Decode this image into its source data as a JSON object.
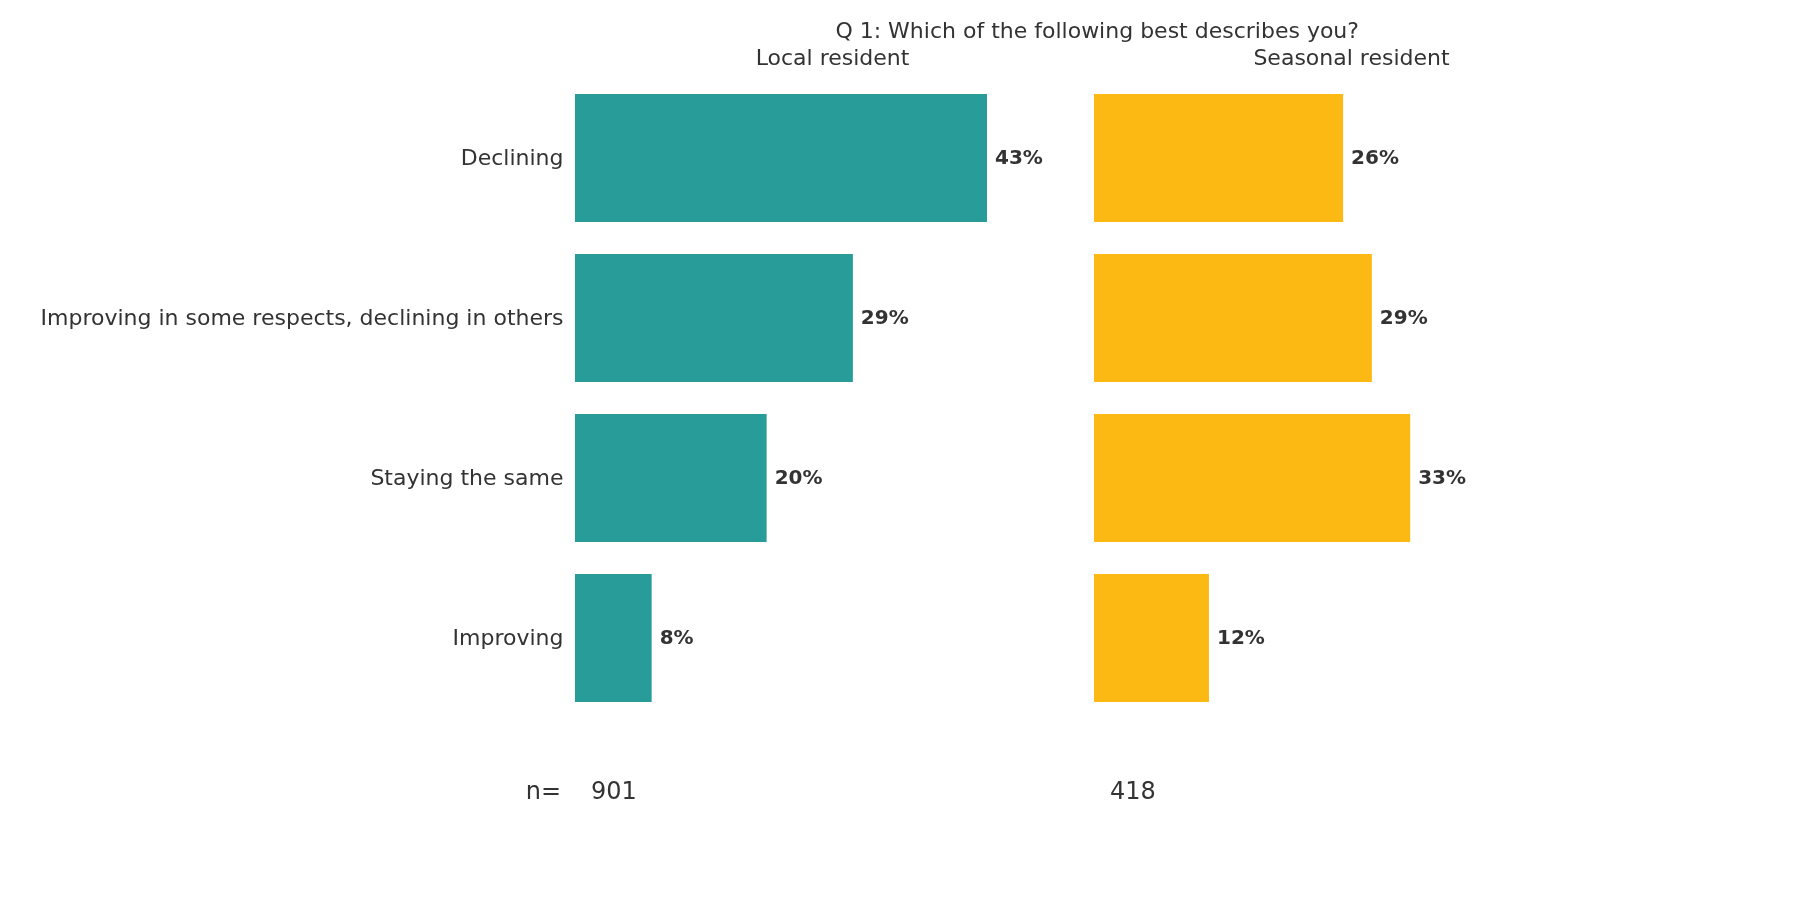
{
  "chart_data": [
    {
      "type": "bar",
      "orientation": "horizontal",
      "title": "Q 1: Which of the following best describes you?",
      "subtitle": "Local resident",
      "categories": [
        "Declining",
        "Improving in some respects, declining in others",
        "Staying the same",
        "Improving"
      ],
      "values": [
        43,
        29,
        20,
        8
      ],
      "value_labels": [
        "43%",
        "29%",
        "20%",
        "8%"
      ],
      "color": "#279c99",
      "tick_labels": "y",
      "annotations": [
        "n=",
        "901"
      ]
    },
    {
      "type": "bar",
      "orientation": "horizontal",
      "subtitle": "Seasonal resident",
      "categories": [
        null,
        null,
        null,
        null
      ],
      "values": [
        26,
        29,
        33,
        12
      ],
      "value_labels": [
        "26%",
        "29%",
        "33%",
        "12%"
      ],
      "color": "#fdb913",
      "tick_labels": false,
      "annotations": [
        "418"
      ]
    }
  ]
}
